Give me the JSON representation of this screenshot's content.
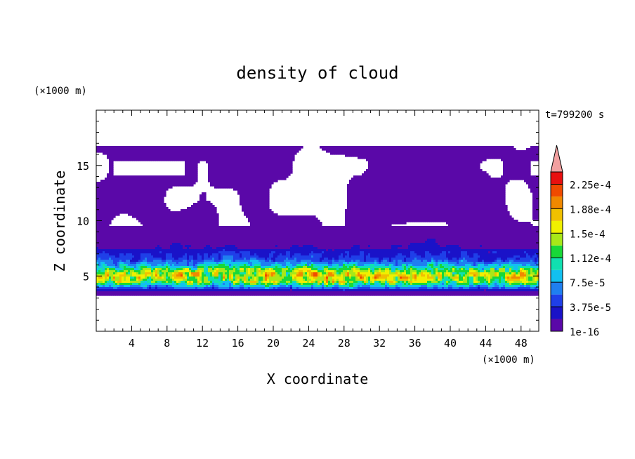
{
  "chart_data": {
    "type": "heatmap",
    "title": "density of cloud",
    "xlabel": "X coordinate",
    "ylabel": "Z coordinate",
    "x_unit": "(×1000 m)",
    "y_unit": "(×1000 m)",
    "time_label": "t=799200 s",
    "xlim": [
      0,
      50
    ],
    "ylim": [
      0,
      20
    ],
    "x_ticks": [
      "4",
      "8",
      "12",
      "16",
      "20",
      "24",
      "28",
      "32",
      "36",
      "40",
      "44",
      "48"
    ],
    "y_ticks": [
      "5",
      "10",
      "15"
    ],
    "colorbar": {
      "labels": [
        "1e-16",
        "3.75e-5",
        "7.5e-5",
        "1.12e-4",
        "1.5e-4",
        "1.88e-4",
        "2.25e-4"
      ],
      "colors": [
        "#5a08a8",
        "#1a12c8",
        "#1f3fe8",
        "#1f7ff0",
        "#12c0f0",
        "#10e0b0",
        "#18d838",
        "#a8e818",
        "#f0f000",
        "#f0c000",
        "#f08800",
        "#f04a00",
        "#e81010"
      ],
      "extend_color": "#f2a0a0"
    },
    "profile": {
      "z": [
        0,
        3.3,
        3.6,
        4.0,
        4.5,
        5.0,
        5.5,
        6.0,
        6.5,
        7.5,
        9,
        11,
        13,
        14,
        15,
        16.7,
        20
      ],
      "density": [
        0,
        0,
        1e-05,
        6e-05,
        0.000115,
        0.00014,
        0.00011,
        7e-05,
        4e-05,
        2e-05,
        8e-06,
        3e-06,
        1e-06,
        5e-07,
        2e-07,
        1e-07,
        0
      ]
    },
    "colors": {
      "axis": "#000000",
      "background": "#ffffff"
    }
  }
}
